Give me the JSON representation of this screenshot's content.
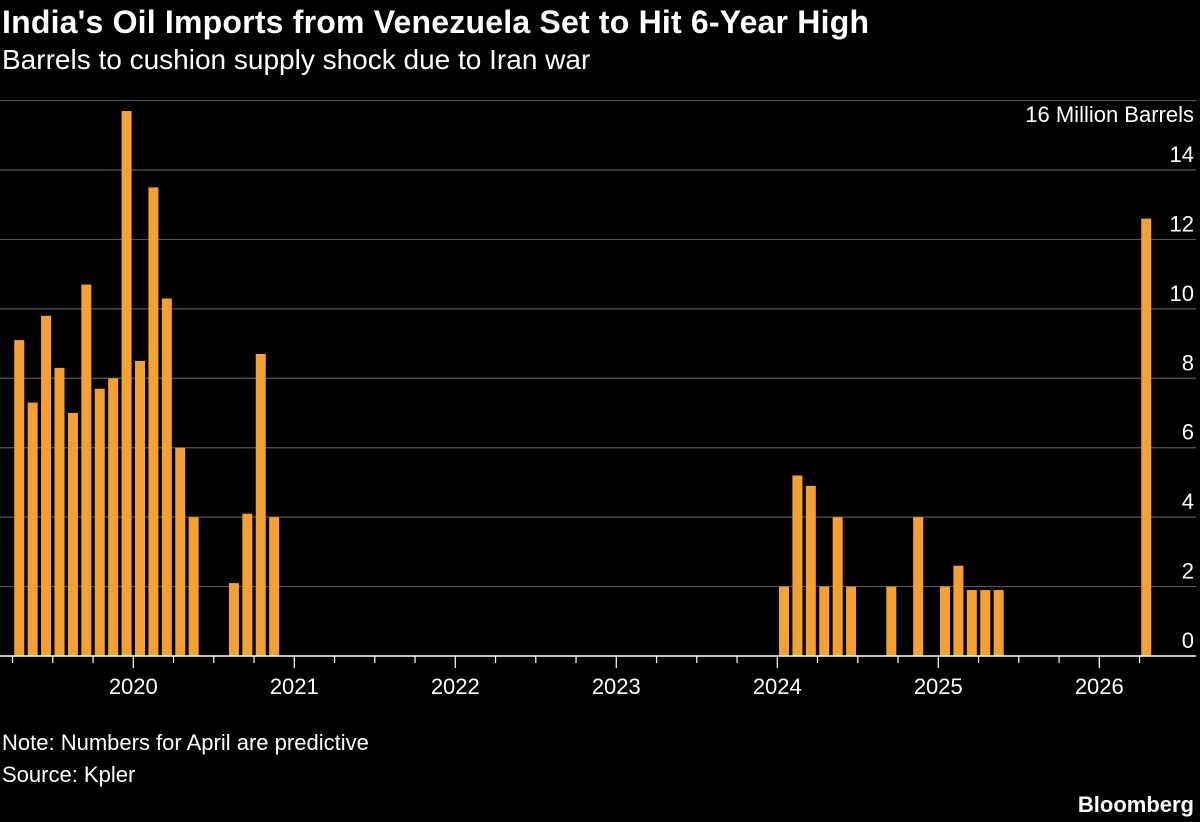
{
  "header": {
    "title": "India's Oil Imports from Venezuela Set to Hit 6-Year High",
    "subtitle": "Barrels to cushion supply shock due to Iran war"
  },
  "footer": {
    "note": "Note: Numbers for April are predictive",
    "source": "Source: Kpler",
    "brand": "Bloomberg"
  },
  "colors": {
    "background": "#000000",
    "bar": "#f5a033",
    "grid": "#555555",
    "text": "#ffffff"
  },
  "chart_data": {
    "type": "bar",
    "title": "India's Oil Imports from Venezuela Set to Hit 6-Year High",
    "subtitle": "Barrels to cushion supply shock due to Iran war",
    "ylabel": "16 Million Barrels",
    "unit_tick_label": "16 Million Barrels",
    "ylim": [
      0,
      16
    ],
    "yticks": [
      0,
      2,
      4,
      6,
      8,
      10,
      12,
      14
    ],
    "xticks": [
      "2020",
      "2021",
      "2022",
      "2023",
      "2024",
      "2025",
      "2026"
    ],
    "grid": true,
    "x_start": "2019-04",
    "x_end": "2026-05",
    "series": [
      {
        "name": "India oil imports from Venezuela",
        "points": [
          {
            "month": "2019-04",
            "value": 9.1
          },
          {
            "month": "2019-05",
            "value": 7.3
          },
          {
            "month": "2019-06",
            "value": 9.8
          },
          {
            "month": "2019-07",
            "value": 8.3
          },
          {
            "month": "2019-08",
            "value": 7.0
          },
          {
            "month": "2019-09",
            "value": 10.7
          },
          {
            "month": "2019-10",
            "value": 7.7
          },
          {
            "month": "2019-11",
            "value": 8.0
          },
          {
            "month": "2019-12",
            "value": 15.7
          },
          {
            "month": "2020-01",
            "value": 8.5
          },
          {
            "month": "2020-02",
            "value": 13.5
          },
          {
            "month": "2020-03",
            "value": 10.3
          },
          {
            "month": "2020-04",
            "value": 6.0
          },
          {
            "month": "2020-05",
            "value": 4.0
          },
          {
            "month": "2020-08",
            "value": 2.1
          },
          {
            "month": "2020-09",
            "value": 4.1
          },
          {
            "month": "2020-10",
            "value": 8.7
          },
          {
            "month": "2020-11",
            "value": 4.0
          },
          {
            "month": "2024-01",
            "value": 2.0
          },
          {
            "month": "2024-02",
            "value": 5.2
          },
          {
            "month": "2024-03",
            "value": 4.9
          },
          {
            "month": "2024-04",
            "value": 2.0
          },
          {
            "month": "2024-05",
            "value": 4.0
          },
          {
            "month": "2024-06",
            "value": 2.0
          },
          {
            "month": "2024-09",
            "value": 2.0
          },
          {
            "month": "2024-11",
            "value": 4.0
          },
          {
            "month": "2025-01",
            "value": 2.0
          },
          {
            "month": "2025-02",
            "value": 2.6
          },
          {
            "month": "2025-03",
            "value": 1.9
          },
          {
            "month": "2025-04",
            "value": 1.9
          },
          {
            "month": "2025-05",
            "value": 1.9
          },
          {
            "month": "2026-04",
            "value": 12.6
          }
        ]
      }
    ]
  }
}
